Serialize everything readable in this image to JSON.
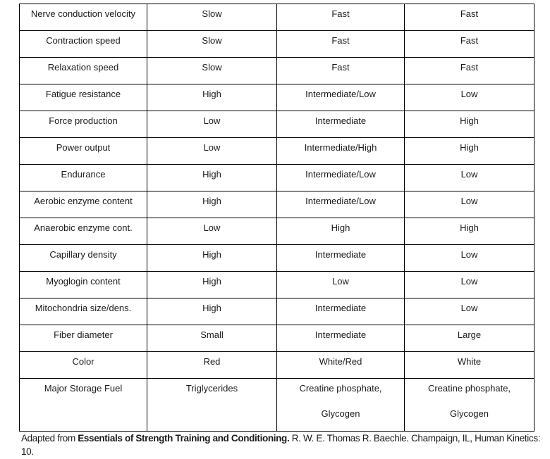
{
  "page": {
    "background_color": "#ffffff",
    "text_color": "#1a1a1a",
    "border_color": "#000000"
  },
  "table": {
    "column_count": 4,
    "rows": [
      {
        "label": "Nerve conduction velocity",
        "values": [
          "Slow",
          "Fast",
          "Fast"
        ]
      },
      {
        "label": "Contraction speed",
        "values": [
          "Slow",
          "Fast",
          "Fast"
        ]
      },
      {
        "label": "Relaxation speed",
        "values": [
          "Slow",
          "Fast",
          "Fast"
        ]
      },
      {
        "label": "Fatigue resistance",
        "values": [
          "High",
          "Intermediate/Low",
          "Low"
        ]
      },
      {
        "label": "Force production",
        "values": [
          "Low",
          "Intermediate",
          "High"
        ]
      },
      {
        "label": "Power output",
        "values": [
          "Low",
          "Intermediate/High",
          "High"
        ]
      },
      {
        "label": "Endurance",
        "values": [
          "High",
          "Intermediate/Low",
          "Low"
        ]
      },
      {
        "label": "Aerobic enzyme content",
        "values": [
          "High",
          "Intermediate/Low",
          "Low"
        ]
      },
      {
        "label": "Anaerobic enzyme cont.",
        "values": [
          "Low",
          "High",
          "High"
        ]
      },
      {
        "label": "Capillary density",
        "values": [
          "High",
          "Intermediate",
          "Low"
        ]
      },
      {
        "label": "Myoglogin content",
        "values": [
          "High",
          "Low",
          "Low"
        ]
      },
      {
        "label": "Mitochondria size/dens.",
        "values": [
          "High",
          "Intermediate",
          "Low"
        ]
      },
      {
        "label": "Fiber diameter",
        "values": [
          "Small",
          "Intermediate",
          "Large"
        ]
      },
      {
        "label": "Color",
        "values": [
          "Red",
          "White/Red",
          "White"
        ]
      },
      {
        "label": "Major Storage Fuel",
        "values": [
          "Triglycerides",
          [
            "Creatine phosphate,",
            "Glycogen"
          ],
          [
            "Creatine phosphate,",
            "Glycogen"
          ]
        ]
      }
    ]
  },
  "footer": {
    "text_before_bold": "Adapted from ",
    "bold_text": "Essentials of Strength Training and Conditioning.",
    "text_after_bold": " R. W. E. Thomas R. Baechle. Champaign, IL, Human Kinetics:",
    "second_line": "10."
  }
}
